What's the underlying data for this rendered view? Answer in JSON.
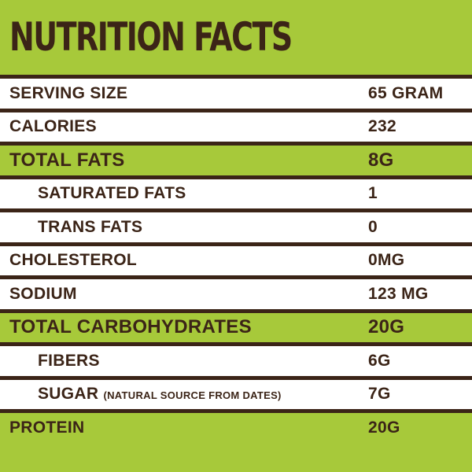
{
  "title": "NUTRITION FACTS",
  "rows": [
    {
      "label": "SERVING SIZE",
      "note": "",
      "value": "65 GRAM"
    },
    {
      "label": "CALORIES",
      "note": "",
      "value": "232"
    },
    {
      "label": "TOTAL FATS",
      "note": "",
      "value": "8G"
    },
    {
      "label": "SATURATED FATS",
      "note": "",
      "value": "1"
    },
    {
      "label": "TRANS FATS",
      "note": "",
      "value": "0"
    },
    {
      "label": "CHOLESTEROL",
      "note": "",
      "value": "0MG"
    },
    {
      "label": "SODIUM",
      "note": "",
      "value": "123 MG"
    },
    {
      "label": "TOTAL CARBOHYDRATES",
      "note": "",
      "value": "20G"
    },
    {
      "label": "FIBERS",
      "note": "",
      "value": "6G"
    },
    {
      "label": "SUGAR",
      "note": "(NATURAL SOURCE FROM DATES)",
      "value": "7G"
    },
    {
      "label": "PROTEIN",
      "note": "",
      "value": "20G"
    }
  ],
  "colors": {
    "green": "#a7c93a",
    "white": "#ffffff",
    "brown": "#3b2417"
  }
}
